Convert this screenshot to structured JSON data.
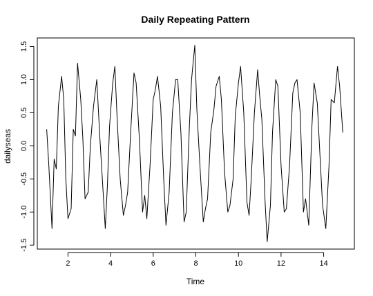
{
  "chart_data": {
    "type": "line",
    "title": "Daily Repeating Pattern",
    "xlabel": "Time",
    "ylabel": "dailyseas",
    "xlim": [
      0.56,
      15.44
    ],
    "ylim": [
      -1.56,
      1.63
    ],
    "x_ticks": [
      2,
      4,
      6,
      8,
      10,
      12,
      14
    ],
    "y_ticks": [
      -1.5,
      -1.0,
      -0.5,
      0.0,
      0.5,
      1.0,
      1.5
    ],
    "x_tick_labels": [
      "2",
      "4",
      "6",
      "8",
      "10",
      "12",
      "14"
    ],
    "y_tick_labels": [
      "-1.5",
      "-1.0",
      "-0.5",
      "0.0",
      "0.5",
      "1.0",
      "1.5"
    ],
    "grid": false,
    "legend": "none",
    "line_color": "#000000",
    "series": [
      {
        "x": [
          1.0,
          1.1,
          1.25,
          1.35,
          1.45,
          1.55,
          1.7,
          1.8,
          1.9,
          2.0,
          2.15,
          2.25,
          2.35,
          2.45,
          2.6,
          2.7,
          2.8,
          2.95,
          3.05,
          3.2,
          3.35,
          3.5,
          3.65,
          3.75,
          3.85,
          3.95,
          4.1,
          4.2,
          4.3,
          4.45,
          4.6,
          4.7,
          4.8,
          4.95,
          5.1,
          5.2,
          5.35,
          5.5,
          5.6,
          5.7,
          5.85,
          6.0,
          6.1,
          6.2,
          6.35,
          6.5,
          6.6,
          6.75,
          6.9,
          7.05,
          7.15,
          7.3,
          7.45,
          7.55,
          7.7,
          7.8,
          7.95,
          8.05,
          8.2,
          8.35,
          8.45,
          8.55,
          8.7,
          8.85,
          8.95,
          9.1,
          9.2,
          9.35,
          9.5,
          9.6,
          9.75,
          9.85,
          10.0,
          10.1,
          10.25,
          10.4,
          10.5,
          10.6,
          10.75,
          10.9,
          11.0,
          11.1,
          11.25,
          11.35,
          11.5,
          11.6,
          11.75,
          11.85,
          12.0,
          12.15,
          12.25,
          12.4,
          12.55,
          12.65,
          12.75,
          12.9,
          13.05,
          13.15,
          13.3,
          13.45,
          13.55,
          13.7,
          13.85,
          13.95,
          14.1,
          14.25,
          14.35,
          14.5,
          14.65,
          14.75,
          14.9
        ],
        "y": [
          0.25,
          -0.3,
          -1.25,
          -0.2,
          -0.35,
          0.6,
          1.05,
          0.7,
          -0.5,
          -1.1,
          -0.95,
          0.25,
          0.15,
          1.25,
          0.7,
          0.1,
          -0.8,
          -0.7,
          0.0,
          0.6,
          1.0,
          0.1,
          -0.7,
          -1.25,
          -0.6,
          0.3,
          0.95,
          1.2,
          0.45,
          -0.5,
          -1.05,
          -0.9,
          -0.7,
          0.25,
          1.1,
          0.95,
          0.1,
          -1.0,
          -0.75,
          -1.1,
          -0.3,
          0.7,
          0.85,
          1.05,
          0.6,
          -0.55,
          -1.2,
          -0.7,
          0.5,
          1.0,
          1.0,
          0.2,
          -1.15,
          -1.0,
          0.3,
          1.0,
          1.52,
          0.55,
          -0.35,
          -1.15,
          -0.95,
          -0.8,
          0.2,
          0.55,
          0.9,
          1.05,
          0.7,
          -0.4,
          -1.0,
          -0.9,
          -0.5,
          0.45,
          0.95,
          1.2,
          0.5,
          -0.85,
          -1.05,
          -0.5,
          0.5,
          1.15,
          0.75,
          0.4,
          -0.85,
          -1.45,
          -0.9,
          0.2,
          1.0,
          0.9,
          -0.3,
          -1.0,
          -0.95,
          -0.3,
          0.8,
          0.95,
          1.0,
          0.5,
          -1.0,
          -0.8,
          -1.2,
          0.3,
          0.95,
          0.65,
          -0.3,
          -0.9,
          -1.25,
          -0.3,
          0.7,
          0.65,
          1.2,
          0.9,
          0.2
        ]
      }
    ]
  }
}
